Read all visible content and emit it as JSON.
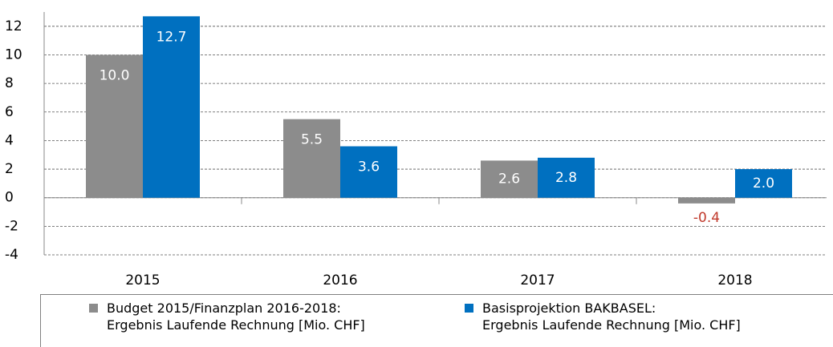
{
  "chart_data": {
    "type": "bar",
    "categories": [
      "2015",
      "2016",
      "2017",
      "2018"
    ],
    "series": [
      {
        "name": "Budget 2015/Finanzplan 2016-2018:\nErgebnis Laufende Rechnung [Mio. CHF]",
        "color": "#8c8c8c",
        "values": [
          10.0,
          5.5,
          2.6,
          -0.4
        ],
        "value_labels": [
          "10.0",
          "5.5",
          "2.6",
          "-0.4"
        ]
      },
      {
        "name": "Basisprojektion BAKBASEL:\nErgebnis Laufende Rechnung [Mio. CHF]",
        "color": "#0070c0",
        "values": [
          12.7,
          3.6,
          2.8,
          2.0
        ],
        "value_labels": [
          "12.7",
          "3.6",
          "2.8",
          "2.0"
        ]
      }
    ],
    "ylim": [
      -4,
      13
    ],
    "yticks": [
      -4,
      -2,
      0,
      2,
      4,
      6,
      8,
      10,
      12
    ],
    "grid": true,
    "negative_label_color": "#c0392b"
  }
}
